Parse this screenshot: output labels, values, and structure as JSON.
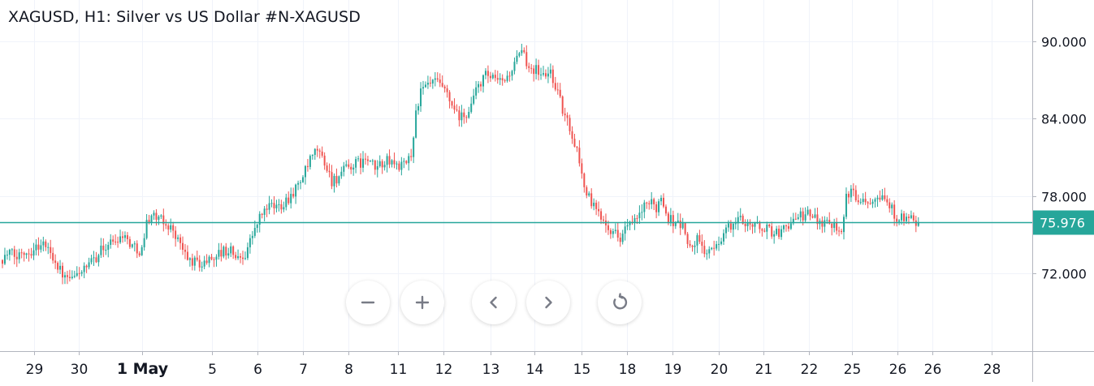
{
  "title": "XAGUSD, H1: Silver vs US Dollar #N-XAGUSD",
  "controls": {
    "zoom_out": "minus-icon",
    "zoom_in": "plus-icon",
    "scroll_left": "chevron-left-icon",
    "scroll_right": "chevron-right-icon",
    "reset": "reset-icon"
  },
  "colors": {
    "up": "#26a69a",
    "down": "#ef5350",
    "price_line": "#26a69a",
    "grid": "#f0f3fa",
    "text": "#131722"
  },
  "chart_data": {
    "type": "candlestick",
    "timeframe": "H1",
    "symbol": "XAGUSD",
    "ylim": [
      66.0,
      93.0
    ],
    "y_ticks": [
      "72.000",
      "78.000",
      "84.000",
      "90.000"
    ],
    "x_ticks": [
      "29",
      "30",
      "1 May",
      "5",
      "6",
      "7",
      "8",
      "11",
      "12",
      "13",
      "14",
      "15",
      "18",
      "19",
      "20",
      "21",
      "22",
      "25",
      "26",
      "26",
      "28"
    ],
    "current_price": "75.976",
    "grid": true,
    "close_path": [
      [
        0,
        73.2
      ],
      [
        3,
        73.6
      ],
      [
        6,
        73.2
      ],
      [
        8,
        73.8
      ],
      [
        11,
        73.7
      ],
      [
        14,
        74.1
      ],
      [
        17,
        74.3
      ],
      [
        20,
        73.7
      ],
      [
        23,
        72.6
      ],
      [
        26,
        71.6
      ],
      [
        29,
        71.5
      ],
      [
        32,
        72.2
      ],
      [
        35,
        72.3
      ],
      [
        38,
        73.1
      ],
      [
        41,
        73.8
      ],
      [
        44,
        74.3
      ],
      [
        47,
        74.6
      ],
      [
        50,
        75.1
      ],
      [
        52,
        74.6
      ],
      [
        55,
        74.0
      ],
      [
        58,
        73.8
      ],
      [
        60,
        76.0
      ],
      [
        62,
        76.6
      ],
      [
        65,
        76.2
      ],
      [
        68,
        75.8
      ],
      [
        71,
        75.4
      ],
      [
        74,
        74.2
      ],
      [
        77,
        73.1
      ],
      [
        80,
        72.9
      ],
      [
        83,
        72.7
      ],
      [
        86,
        73.1
      ],
      [
        89,
        73.5
      ],
      [
        92,
        73.7
      ],
      [
        95,
        73.8
      ],
      [
        98,
        73.1
      ],
      [
        101,
        73.6
      ],
      [
        104,
        75.0
      ],
      [
        107,
        76.3
      ],
      [
        110,
        77.2
      ],
      [
        113,
        77.1
      ],
      [
        116,
        77.4
      ],
      [
        119,
        77.9
      ],
      [
        122,
        78.6
      ],
      [
        125,
        79.5
      ],
      [
        128,
        80.7
      ],
      [
        131,
        81.6
      ],
      [
        134,
        80.6
      ],
      [
        137,
        79.2
      ],
      [
        140,
        79.5
      ],
      [
        143,
        80.1
      ],
      [
        146,
        80.4
      ],
      [
        149,
        80.6
      ],
      [
        152,
        80.8
      ],
      [
        155,
        80.1
      ],
      [
        158,
        80.6
      ],
      [
        161,
        80.7
      ],
      [
        164,
        80.4
      ],
      [
        167,
        80.3
      ],
      [
        170,
        81.2
      ],
      [
        172,
        84.5
      ],
      [
        174,
        86.0
      ],
      [
        177,
        86.6
      ],
      [
        180,
        86.8
      ],
      [
        183,
        86.4
      ],
      [
        186,
        85.3
      ],
      [
        189,
        84.2
      ],
      [
        192,
        84.0
      ],
      [
        195,
        85.1
      ],
      [
        198,
        86.6
      ],
      [
        201,
        87.3
      ],
      [
        204,
        87.0
      ],
      [
        207,
        86.8
      ],
      [
        210,
        87.2
      ],
      [
        213,
        88.2
      ],
      [
        216,
        89.1
      ],
      [
        219,
        88.1
      ],
      [
        222,
        87.8
      ],
      [
        225,
        87.3
      ],
      [
        228,
        87.6
      ],
      [
        231,
        86.1
      ],
      [
        233,
        84.6
      ],
      [
        236,
        83.3
      ],
      [
        239,
        81.6
      ],
      [
        242,
        78.8
      ],
      [
        245,
        77.4
      ],
      [
        248,
        76.6
      ],
      [
        251,
        76.1
      ],
      [
        254,
        75.2
      ],
      [
        257,
        74.9
      ],
      [
        260,
        75.7
      ],
      [
        263,
        75.9
      ],
      [
        266,
        76.9
      ],
      [
        269,
        77.4
      ],
      [
        272,
        77.2
      ],
      [
        274,
        78.0
      ],
      [
        277,
        76.3
      ],
      [
        280,
        76.0
      ],
      [
        283,
        75.7
      ],
      [
        286,
        73.9
      ],
      [
        289,
        74.6
      ],
      [
        292,
        73.8
      ],
      [
        295,
        73.6
      ],
      [
        298,
        74.6
      ],
      [
        301,
        75.4
      ],
      [
        304,
        75.8
      ],
      [
        307,
        76.2
      ],
      [
        310,
        76.0
      ],
      [
        313,
        75.7
      ],
      [
        316,
        75.6
      ],
      [
        319,
        75.4
      ],
      [
        322,
        75.1
      ],
      [
        325,
        75.4
      ],
      [
        328,
        76.1
      ],
      [
        331,
        76.3
      ],
      [
        334,
        76.6
      ],
      [
        337,
        76.4
      ],
      [
        340,
        76.1
      ],
      [
        343,
        76.0
      ],
      [
        346,
        75.9
      ],
      [
        349,
        75.4
      ],
      [
        351,
        78.0
      ],
      [
        354,
        78.2
      ],
      [
        357,
        77.8
      ],
      [
        360,
        77.7
      ],
      [
        363,
        78.1
      ],
      [
        366,
        78.2
      ],
      [
        369,
        77.2
      ],
      [
        372,
        76.4
      ],
      [
        375,
        76.2
      ],
      [
        378,
        76.1
      ],
      [
        381,
        75.98
      ]
    ]
  }
}
